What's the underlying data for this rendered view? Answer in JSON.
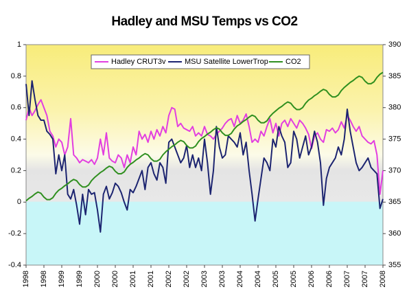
{
  "chart_data": {
    "type": "line",
    "title": "Hadley and MSU Temps vs CO2",
    "categories": [
      "1998",
      null,
      null,
      null,
      null,
      null,
      "1998",
      null,
      null,
      null,
      null,
      null,
      "1999",
      null,
      null,
      null,
      null,
      null,
      "1999",
      null,
      null,
      null,
      null,
      null,
      "2000",
      null,
      null,
      null,
      null,
      null,
      "2000",
      null,
      null,
      null,
      null,
      null,
      "2001",
      null,
      null,
      null,
      null,
      null,
      "2001",
      null,
      null,
      null,
      null,
      null,
      "2002",
      null,
      null,
      null,
      null,
      null,
      "2002",
      null,
      null,
      null,
      null,
      null,
      "2003",
      null,
      null,
      null,
      null,
      null,
      "2003",
      null,
      null,
      null,
      null,
      null,
      "2004",
      null,
      null,
      null,
      null,
      null,
      "2004",
      null,
      null,
      null,
      null,
      null,
      "2005",
      null,
      null,
      null,
      null,
      null,
      "2005",
      null,
      null,
      null,
      null,
      null,
      "2006",
      null,
      null,
      null,
      null,
      null,
      "2006",
      null,
      null,
      null,
      null,
      null,
      "2007",
      null,
      null,
      null,
      null,
      null,
      "2007",
      null,
      null,
      null,
      null,
      null,
      "2008"
    ],
    "series": [
      {
        "name": "Hadley CRUT3v",
        "color": "#e23ee0",
        "values": [
          0.52,
          0.6,
          0.55,
          0.58,
          0.62,
          0.65,
          0.6,
          0.55,
          0.45,
          0.42,
          0.35,
          0.4,
          0.38,
          0.3,
          0.35,
          0.53,
          0.3,
          0.28,
          0.25,
          0.27,
          0.26,
          0.25,
          0.27,
          0.24,
          0.28,
          0.4,
          0.3,
          0.44,
          0.28,
          0.26,
          0.25,
          0.3,
          0.28,
          0.22,
          0.3,
          0.25,
          0.35,
          0.3,
          0.45,
          0.4,
          0.43,
          0.38,
          0.45,
          0.4,
          0.46,
          0.42,
          0.48,
          0.44,
          0.55,
          0.6,
          0.59,
          0.48,
          0.5,
          0.47,
          0.46,
          0.45,
          0.48,
          0.42,
          0.44,
          0.42,
          0.48,
          0.43,
          0.42,
          0.4,
          0.43,
          0.45,
          0.47,
          0.5,
          0.52,
          0.53,
          0.48,
          0.55,
          0.5,
          0.52,
          0.56,
          0.48,
          0.38,
          0.4,
          0.38,
          0.45,
          0.42,
          0.48,
          0.53,
          0.44,
          0.5,
          0.42,
          0.5,
          0.52,
          0.48,
          0.53,
          0.5,
          0.47,
          0.52,
          0.5,
          0.47,
          0.43,
          0.34,
          0.42,
          0.44,
          0.4,
          0.38,
          0.46,
          0.45,
          0.47,
          0.44,
          0.46,
          0.51,
          0.47,
          0.55,
          0.52,
          0.48,
          0.45,
          0.48,
          0.42,
          0.4,
          0.38,
          0.37,
          0.39,
          0.3,
          0.05,
          0.2
        ]
      },
      {
        "name": "MSU Satellite LowerTrop",
        "color": "#1c2470",
        "values": [
          0.75,
          0.55,
          0.77,
          0.65,
          0.55,
          0.52,
          0.52,
          0.45,
          0.43,
          0.4,
          0.18,
          0.3,
          0.2,
          0.3,
          0.05,
          0.02,
          0.08,
          -0.02,
          -0.14,
          0.05,
          -0.08,
          0.08,
          0.05,
          0.06,
          -0.05,
          -0.19,
          0.05,
          0.1,
          0.02,
          0.06,
          0.12,
          0.1,
          0.06,
          0.0,
          -0.05,
          0.08,
          0.06,
          0.1,
          0.15,
          0.2,
          0.08,
          0.22,
          0.25,
          0.18,
          0.14,
          0.25,
          0.22,
          0.12,
          0.38,
          0.4,
          0.35,
          0.3,
          0.25,
          0.28,
          0.36,
          0.22,
          0.3,
          0.22,
          0.28,
          0.2,
          0.4,
          0.25,
          0.05,
          0.2,
          0.48,
          0.35,
          0.28,
          0.3,
          0.42,
          0.4,
          0.38,
          0.35,
          0.44,
          0.3,
          0.38,
          0.2,
          0.05,
          -0.12,
          0.02,
          0.15,
          0.28,
          0.25,
          0.2,
          0.4,
          0.35,
          0.48,
          0.42,
          0.38,
          0.22,
          0.25,
          0.45,
          0.4,
          0.28,
          0.35,
          0.42,
          0.3,
          0.35,
          0.45,
          0.38,
          0.25,
          -0.02,
          0.15,
          0.22,
          0.25,
          0.28,
          0.35,
          0.3,
          0.4,
          0.59,
          0.45,
          0.35,
          0.25,
          0.2,
          0.22,
          0.25,
          0.28,
          0.22,
          0.2,
          0.18,
          -0.04,
          0.02
        ]
      },
      {
        "name": "CO2",
        "color": "#2f8f1f",
        "axis": "y2",
        "values": [
          365.2,
          365.6,
          365.9,
          366.3,
          366.6,
          366.4,
          365.8,
          365.4,
          365.4,
          365.7,
          366.4,
          366.9,
          367.2,
          367.6,
          367.9,
          368.3,
          368.6,
          368.4,
          367.8,
          367.4,
          367.4,
          367.7,
          368.4,
          368.9,
          369.3,
          369.7,
          370.0,
          370.4,
          370.7,
          370.5,
          369.9,
          369.5,
          369.5,
          369.8,
          370.5,
          371.0,
          371.3,
          371.7,
          372.0,
          372.4,
          372.7,
          372.5,
          371.9,
          371.5,
          371.5,
          371.8,
          372.5,
          373.0,
          373.4,
          373.8,
          374.1,
          374.5,
          374.8,
          374.6,
          374.0,
          373.6,
          373.6,
          373.9,
          374.6,
          375.1,
          375.4,
          375.8,
          376.1,
          376.5,
          376.8,
          376.6,
          376.0,
          375.6,
          375.6,
          375.9,
          376.6,
          377.1,
          377.4,
          377.8,
          378.1,
          378.5,
          378.8,
          378.6,
          378.0,
          377.6,
          377.6,
          377.9,
          378.6,
          379.1,
          379.5,
          379.9,
          380.2,
          380.6,
          380.9,
          380.7,
          380.1,
          379.7,
          379.7,
          380.0,
          380.7,
          381.2,
          381.5,
          381.9,
          382.2,
          382.6,
          382.9,
          382.7,
          382.1,
          381.7,
          381.7,
          382.0,
          382.7,
          383.2,
          383.6,
          384.0,
          384.3,
          384.7,
          385.0,
          384.8,
          384.2,
          383.8,
          383.8,
          384.1,
          384.8,
          385.3,
          385.6
        ]
      }
    ],
    "ylim": [
      -0.4,
      1
    ],
    "yticks": [
      -0.4,
      -0.2,
      0,
      0.2,
      0.4,
      0.6,
      0.8,
      1
    ],
    "y2lim": [
      355,
      390
    ],
    "y2ticks": [
      355,
      360,
      365,
      370,
      375,
      380,
      385,
      390
    ],
    "grid": false,
    "legend": "top"
  }
}
